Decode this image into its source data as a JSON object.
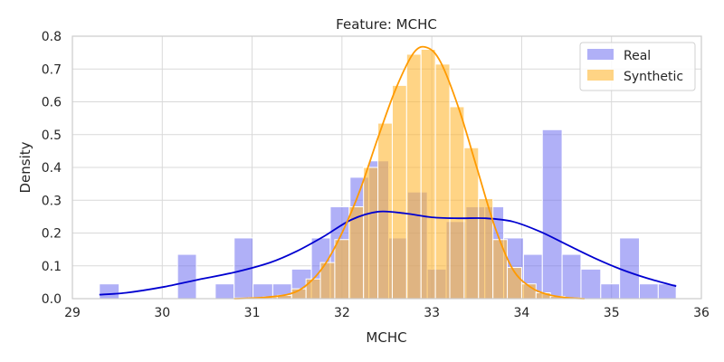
{
  "chart_data": {
    "type": "bar",
    "title": "Feature: MCHC",
    "xlabel": "MCHC",
    "ylabel": "Density",
    "xlim": [
      29,
      36
    ],
    "ylim": [
      0,
      0.8
    ],
    "xticks": [
      29,
      30,
      31,
      32,
      33,
      34,
      35,
      36
    ],
    "yticks": [
      0.0,
      0.1,
      0.2,
      0.3,
      0.4,
      0.5,
      0.6,
      0.7,
      0.8
    ],
    "grid": true,
    "legend_position": "top-right",
    "series": [
      {
        "name": "Real",
        "bar_color": "#7070f0",
        "line_color": "#0000d0",
        "bars": [
          {
            "x0": 29.3,
            "x1": 29.52,
            "h": 0.045
          },
          {
            "x0": 30.17,
            "x1": 30.38,
            "h": 0.135
          },
          {
            "x0": 30.59,
            "x1": 30.8,
            "h": 0.045
          },
          {
            "x0": 30.8,
            "x1": 31.01,
            "h": 0.185
          },
          {
            "x0": 31.01,
            "x1": 31.23,
            "h": 0.045
          },
          {
            "x0": 31.23,
            "x1": 31.44,
            "h": 0.045
          },
          {
            "x0": 31.44,
            "x1": 31.66,
            "h": 0.09
          },
          {
            "x0": 31.66,
            "x1": 31.87,
            "h": 0.185
          },
          {
            "x0": 31.87,
            "x1": 32.09,
            "h": 0.28
          },
          {
            "x0": 32.09,
            "x1": 32.3,
            "h": 0.37
          },
          {
            "x0": 32.3,
            "x1": 32.52,
            "h": 0.42
          },
          {
            "x0": 32.52,
            "x1": 32.73,
            "h": 0.185
          },
          {
            "x0": 32.73,
            "x1": 32.95,
            "h": 0.325
          },
          {
            "x0": 32.95,
            "x1": 33.16,
            "h": 0.09
          },
          {
            "x0": 33.16,
            "x1": 33.38,
            "h": 0.235
          },
          {
            "x0": 33.38,
            "x1": 33.59,
            "h": 0.28
          },
          {
            "x0": 33.59,
            "x1": 33.8,
            "h": 0.28
          },
          {
            "x0": 33.8,
            "x1": 34.02,
            "h": 0.185
          },
          {
            "x0": 34.02,
            "x1": 34.23,
            "h": 0.135
          },
          {
            "x0": 34.23,
            "x1": 34.45,
            "h": 0.515
          },
          {
            "x0": 34.45,
            "x1": 34.66,
            "h": 0.135
          },
          {
            "x0": 34.66,
            "x1": 34.88,
            "h": 0.09
          },
          {
            "x0": 34.88,
            "x1": 35.09,
            "h": 0.045
          },
          {
            "x0": 35.09,
            "x1": 35.31,
            "h": 0.185
          },
          {
            "x0": 35.31,
            "x1": 35.52,
            "h": 0.045
          },
          {
            "x0": 35.52,
            "x1": 35.72,
            "h": 0.045
          }
        ],
        "kde": [
          [
            29.3,
            0.012
          ],
          [
            29.6,
            0.018
          ],
          [
            30.0,
            0.035
          ],
          [
            30.4,
            0.058
          ],
          [
            30.8,
            0.08
          ],
          [
            31.2,
            0.11
          ],
          [
            31.5,
            0.145
          ],
          [
            31.8,
            0.19
          ],
          [
            32.1,
            0.24
          ],
          [
            32.4,
            0.265
          ],
          [
            32.7,
            0.26
          ],
          [
            33.0,
            0.248
          ],
          [
            33.3,
            0.245
          ],
          [
            33.6,
            0.245
          ],
          [
            33.9,
            0.235
          ],
          [
            34.2,
            0.205
          ],
          [
            34.5,
            0.165
          ],
          [
            34.8,
            0.125
          ],
          [
            35.1,
            0.09
          ],
          [
            35.4,
            0.062
          ],
          [
            35.72,
            0.038
          ]
        ]
      },
      {
        "name": "Synthetic",
        "bar_color": "#ffb733",
        "line_color": "#ff9a00",
        "bars": [
          {
            "x0": 30.8,
            "x1": 30.96,
            "h": 0.002
          },
          {
            "x0": 30.96,
            "x1": 31.12,
            "h": 0.003
          },
          {
            "x0": 31.12,
            "x1": 31.28,
            "h": 0.005
          },
          {
            "x0": 31.28,
            "x1": 31.44,
            "h": 0.01
          },
          {
            "x0": 31.44,
            "x1": 31.6,
            "h": 0.03
          },
          {
            "x0": 31.6,
            "x1": 31.76,
            "h": 0.06
          },
          {
            "x0": 31.76,
            "x1": 31.92,
            "h": 0.11
          },
          {
            "x0": 31.92,
            "x1": 32.08,
            "h": 0.18
          },
          {
            "x0": 32.08,
            "x1": 32.24,
            "h": 0.28
          },
          {
            "x0": 32.24,
            "x1": 32.4,
            "h": 0.4
          },
          {
            "x0": 32.4,
            "x1": 32.56,
            "h": 0.535
          },
          {
            "x0": 32.56,
            "x1": 32.72,
            "h": 0.65
          },
          {
            "x0": 32.72,
            "x1": 32.88,
            "h": 0.745
          },
          {
            "x0": 32.88,
            "x1": 33.04,
            "h": 0.76
          },
          {
            "x0": 33.04,
            "x1": 33.2,
            "h": 0.715
          },
          {
            "x0": 33.2,
            "x1": 33.36,
            "h": 0.585
          },
          {
            "x0": 33.36,
            "x1": 33.52,
            "h": 0.46
          },
          {
            "x0": 33.52,
            "x1": 33.68,
            "h": 0.305
          },
          {
            "x0": 33.68,
            "x1": 33.84,
            "h": 0.18
          },
          {
            "x0": 33.84,
            "x1": 34.0,
            "h": 0.095
          },
          {
            "x0": 34.0,
            "x1": 34.16,
            "h": 0.045
          },
          {
            "x0": 34.16,
            "x1": 34.32,
            "h": 0.018
          },
          {
            "x0": 34.32,
            "x1": 34.48,
            "h": 0.007
          },
          {
            "x0": 34.48,
            "x1": 34.64,
            "h": 0.002
          }
        ],
        "kde": [
          [
            30.8,
            0.0
          ],
          [
            31.1,
            0.003
          ],
          [
            31.4,
            0.013
          ],
          [
            31.6,
            0.04
          ],
          [
            31.8,
            0.1
          ],
          [
            32.0,
            0.2
          ],
          [
            32.2,
            0.33
          ],
          [
            32.4,
            0.49
          ],
          [
            32.6,
            0.64
          ],
          [
            32.8,
            0.75
          ],
          [
            32.95,
            0.765
          ],
          [
            33.1,
            0.72
          ],
          [
            33.3,
            0.58
          ],
          [
            33.5,
            0.4
          ],
          [
            33.7,
            0.22
          ],
          [
            33.9,
            0.09
          ],
          [
            34.1,
            0.035
          ],
          [
            34.3,
            0.012
          ],
          [
            34.5,
            0.003
          ],
          [
            34.7,
            0.0
          ]
        ]
      }
    ]
  }
}
